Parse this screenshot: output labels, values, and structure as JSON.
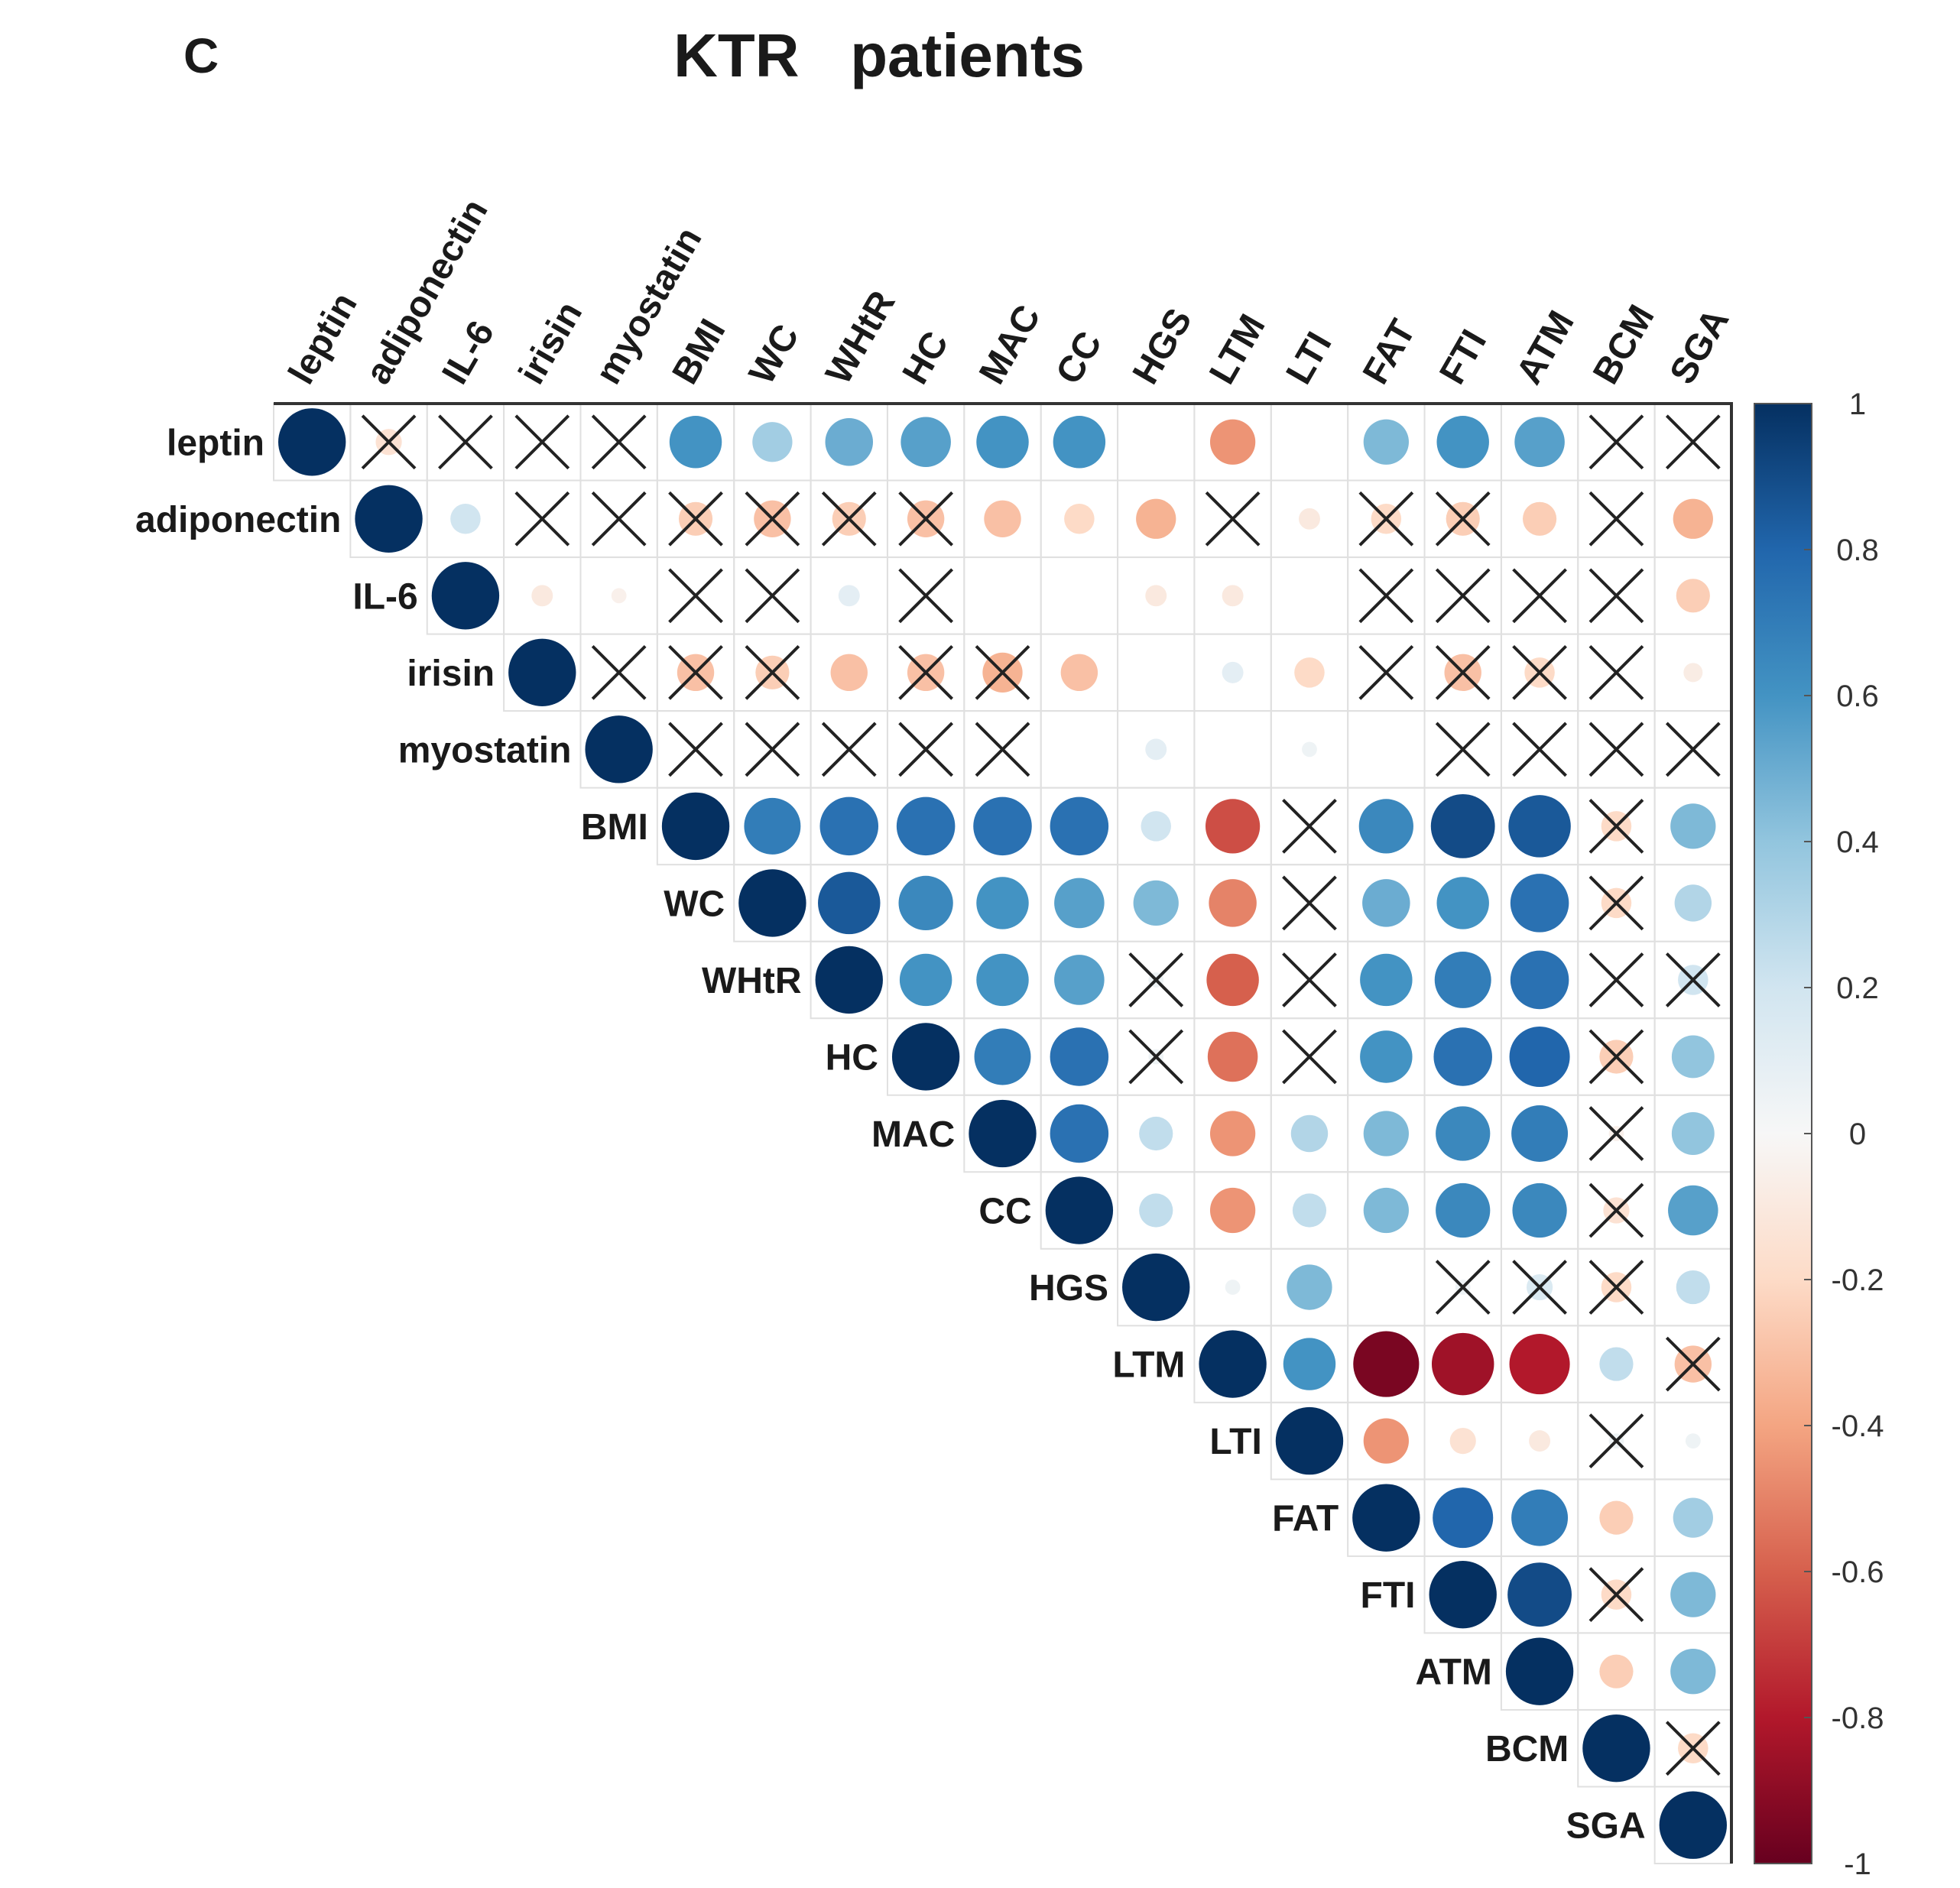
{
  "panel_label": "C",
  "chart_data": {
    "type": "heatmap",
    "subtype": "correlation-matrix-upper-circles",
    "title": "KTR   patients",
    "variables": [
      "leptin",
      "adiponectin",
      "IL-6",
      "irisin",
      "myostatin",
      "BMI",
      "WC",
      "WHtR",
      "HC",
      "MAC",
      "CC",
      "HGS",
      "LTM",
      "LTI",
      "FAT",
      "FTI",
      "ATM",
      "BCM",
      "SGA"
    ],
    "matrix": [
      [
        1,
        -0.15,
        0,
        0,
        0,
        0.6,
        0.35,
        0.5,
        0.55,
        0.6,
        0.6,
        0,
        -0.45,
        0,
        0.45,
        0.6,
        0.55,
        0,
        0
      ],
      [
        null,
        1,
        0.2,
        0,
        0,
        -0.25,
        -0.3,
        -0.25,
        -0.3,
        -0.3,
        -0.2,
        -0.35,
        0,
        -0.1,
        -0.2,
        -0.25,
        -0.25,
        0,
        -0.35
      ],
      [
        null,
        null,
        1,
        -0.1,
        -0.05,
        0,
        0,
        0.1,
        0,
        0,
        0,
        -0.1,
        -0.1,
        0,
        0,
        0,
        0,
        0,
        -0.25
      ],
      [
        null,
        null,
        null,
        1,
        0,
        -0.3,
        -0.25,
        -0.3,
        -0.3,
        -0.35,
        -0.3,
        0,
        0.1,
        -0.2,
        0,
        -0.3,
        -0.2,
        0,
        -0.08
      ],
      [
        null,
        null,
        null,
        null,
        1,
        0,
        0,
        0,
        0,
        0,
        0,
        0.1,
        0,
        0.05,
        0,
        0,
        0,
        0,
        0
      ],
      [
        null,
        null,
        null,
        null,
        null,
        1,
        0.7,
        0.75,
        0.75,
        0.75,
        0.75,
        0.2,
        -0.65,
        0,
        0.65,
        0.9,
        0.85,
        -0.2,
        0.45
      ],
      [
        null,
        null,
        null,
        null,
        null,
        null,
        1,
        0.85,
        0.65,
        0.6,
        0.55,
        0.45,
        -0.5,
        0,
        0.5,
        0.6,
        0.75,
        -0.2,
        0.3
      ],
      [
        null,
        null,
        null,
        null,
        null,
        null,
        null,
        1,
        0.6,
        0.6,
        0.55,
        0.05,
        -0.6,
        0,
        0.6,
        0.7,
        0.75,
        0,
        0.2
      ],
      [
        null,
        null,
        null,
        null,
        null,
        null,
        null,
        null,
        1,
        0.7,
        0.75,
        0.05,
        -0.55,
        0,
        0.6,
        0.75,
        0.8,
        -0.25,
        0.4
      ],
      [
        null,
        null,
        null,
        null,
        null,
        null,
        null,
        null,
        null,
        1,
        0.75,
        0.25,
        -0.45,
        0.3,
        0.45,
        0.65,
        0.7,
        -0.05,
        0.4
      ],
      [
        null,
        null,
        null,
        null,
        null,
        null,
        null,
        null,
        null,
        null,
        1,
        0.25,
        -0.45,
        0.25,
        0.45,
        0.65,
        0.65,
        -0.15,
        0.55
      ],
      [
        null,
        null,
        null,
        null,
        null,
        null,
        null,
        null,
        null,
        null,
        null,
        1,
        0.05,
        0.45,
        0,
        0.05,
        0.15,
        -0.2,
        0.25
      ],
      [
        null,
        null,
        null,
        null,
        null,
        null,
        null,
        null,
        null,
        null,
        null,
        null,
        1,
        0.6,
        -0.95,
        -0.85,
        -0.8,
        0.25,
        -0.3
      ],
      [
        null,
        null,
        null,
        null,
        null,
        null,
        null,
        null,
        null,
        null,
        null,
        null,
        null,
        1,
        -0.45,
        -0.15,
        -0.1,
        0.05,
        0.05
      ],
      [
        null,
        null,
        null,
        null,
        null,
        null,
        null,
        null,
        null,
        null,
        null,
        null,
        null,
        null,
        1,
        0.8,
        0.7,
        -0.25,
        0.35
      ],
      [
        null,
        null,
        null,
        null,
        null,
        null,
        null,
        null,
        null,
        null,
        null,
        null,
        null,
        null,
        null,
        1,
        0.9,
        -0.2,
        0.45
      ],
      [
        null,
        null,
        null,
        null,
        null,
        null,
        null,
        null,
        null,
        null,
        null,
        null,
        null,
        null,
        null,
        null,
        1,
        -0.25,
        0.45
      ],
      [
        null,
        null,
        null,
        null,
        null,
        null,
        null,
        null,
        null,
        null,
        null,
        null,
        null,
        null,
        null,
        null,
        null,
        1,
        -0.2
      ],
      [
        null,
        null,
        null,
        null,
        null,
        null,
        null,
        null,
        null,
        null,
        null,
        null,
        null,
        null,
        null,
        null,
        null,
        null,
        1
      ]
    ],
    "not_significant": [
      [
        0,
        1
      ],
      [
        0,
        2
      ],
      [
        0,
        3
      ],
      [
        0,
        4
      ],
      [
        0,
        17
      ],
      [
        0,
        18
      ],
      [
        1,
        3
      ],
      [
        1,
        4
      ],
      [
        1,
        5
      ],
      [
        1,
        6
      ],
      [
        1,
        7
      ],
      [
        1,
        8
      ],
      [
        1,
        12
      ],
      [
        1,
        14
      ],
      [
        1,
        15
      ],
      [
        1,
        17
      ],
      [
        2,
        5
      ],
      [
        2,
        6
      ],
      [
        2,
        8
      ],
      [
        2,
        14
      ],
      [
        2,
        15
      ],
      [
        2,
        16
      ],
      [
        2,
        17
      ],
      [
        3,
        4
      ],
      [
        3,
        5
      ],
      [
        3,
        6
      ],
      [
        3,
        8
      ],
      [
        3,
        9
      ],
      [
        3,
        14
      ],
      [
        3,
        15
      ],
      [
        3,
        16
      ],
      [
        3,
        17
      ],
      [
        4,
        5
      ],
      [
        4,
        6
      ],
      [
        4,
        7
      ],
      [
        4,
        8
      ],
      [
        4,
        9
      ],
      [
        4,
        15
      ],
      [
        4,
        16
      ],
      [
        4,
        17
      ],
      [
        4,
        18
      ],
      [
        5,
        13
      ],
      [
        5,
        17
      ],
      [
        6,
        13
      ],
      [
        6,
        17
      ],
      [
        7,
        11
      ],
      [
        7,
        13
      ],
      [
        7,
        17
      ],
      [
        7,
        18
      ],
      [
        8,
        11
      ],
      [
        8,
        13
      ],
      [
        8,
        17
      ],
      [
        9,
        17
      ],
      [
        10,
        17
      ],
      [
        11,
        15
      ],
      [
        11,
        16
      ],
      [
        11,
        17
      ],
      [
        12,
        18
      ],
      [
        13,
        17
      ],
      [
        15,
        17
      ],
      [
        17,
        18
      ]
    ],
    "colorbar": {
      "range": [
        -1,
        1
      ],
      "ticks": [
        "1",
        "0.8",
        "0.6",
        "0.4",
        "0.2",
        "0",
        "-0.2",
        "-0.4",
        "-0.6",
        "-0.8",
        "-1"
      ],
      "colors": {
        "neg_strong": "#67001f",
        "neg_mid": "#d6604d",
        "neg_light": "#fddbc7",
        "zero": "#f7f7f7",
        "pos_light": "#d1e5f0",
        "pos_mid": "#4393c3",
        "pos_strong": "#053061"
      }
    }
  }
}
